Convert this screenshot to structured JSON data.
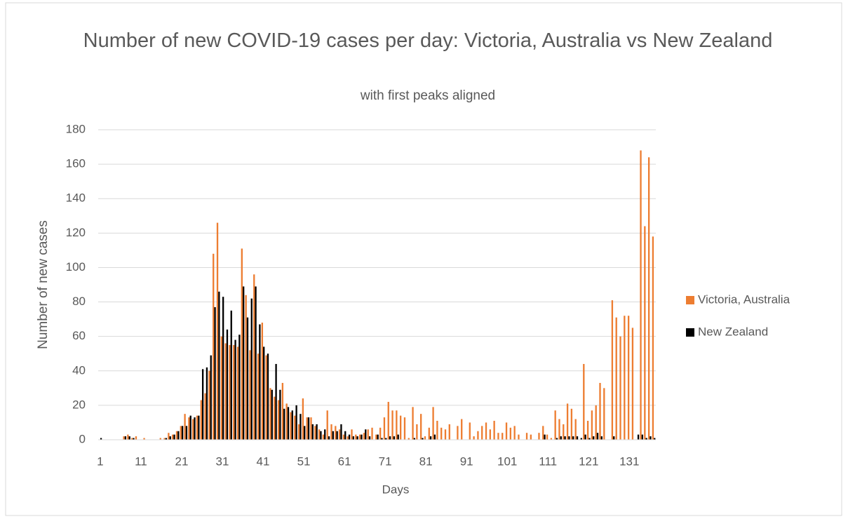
{
  "chart_data": {
    "type": "bar",
    "title": "Number of new COVID-19 cases per day: Victoria, Australia vs New Zealand",
    "subtitle": "with first peaks aligned",
    "x_label": "Days",
    "y_label": "Number of new cases",
    "categories": [
      1,
      null,
      null,
      null,
      null,
      null,
      null,
      null,
      null,
      null,
      11,
      null,
      null,
      null,
      null,
      null,
      null,
      null,
      null,
      null,
      21,
      null,
      null,
      null,
      null,
      null,
      null,
      null,
      null,
      null,
      31,
      null,
      null,
      null,
      null,
      null,
      null,
      null,
      null,
      null,
      41,
      null,
      null,
      null,
      null,
      null,
      null,
      null,
      null,
      null,
      51,
      null,
      null,
      null,
      null,
      null,
      null,
      null,
      null,
      null,
      61,
      null,
      null,
      null,
      null,
      null,
      null,
      null,
      null,
      null,
      71,
      null,
      null,
      null,
      null,
      null,
      null,
      null,
      null,
      null,
      81,
      null,
      null,
      null,
      null,
      null,
      null,
      null,
      null,
      null,
      91,
      null,
      null,
      null,
      null,
      null,
      null,
      null,
      null,
      null,
      101,
      null,
      null,
      null,
      null,
      null,
      null,
      null,
      null,
      null,
      111,
      null,
      null,
      null,
      null,
      null,
      null,
      null,
      null,
      null,
      121,
      null,
      null,
      null,
      null,
      null,
      null,
      null,
      null,
      null,
      131,
      null,
      null,
      null,
      null,
      null,
      null
    ],
    "series": [
      {
        "name": "Victoria, Australia",
        "color": "#ed7d31",
        "values": [
          0,
          0,
          0,
          0,
          0,
          0,
          2,
          3,
          1,
          2,
          0,
          1,
          0,
          0,
          0,
          1,
          1,
          4,
          3,
          5,
          8,
          15,
          13,
          12,
          14,
          23,
          27,
          40,
          108,
          126,
          60,
          56,
          55,
          55,
          54,
          111,
          84,
          52,
          96,
          50,
          68,
          49,
          30,
          25,
          23,
          33,
          21,
          16,
          14,
          9,
          24,
          13,
          13,
          8,
          6,
          3,
          17,
          9,
          8,
          6,
          3,
          2,
          6,
          3,
          3,
          4,
          6,
          7,
          3,
          7,
          13,
          22,
          17,
          17,
          14,
          13,
          1,
          19,
          9,
          15,
          2,
          7,
          19,
          11,
          7,
          6,
          9,
          0,
          8,
          12,
          0,
          10,
          2,
          5,
          8,
          10,
          6,
          11,
          4,
          4,
          10,
          7,
          8,
          3,
          0,
          4,
          3,
          0,
          4,
          8,
          3,
          1,
          17,
          12,
          9,
          21,
          18,
          12,
          0,
          44,
          11,
          17,
          20,
          33,
          30,
          0,
          81,
          71,
          60,
          72,
          72,
          65,
          0,
          168,
          124,
          164,
          118
        ]
      },
      {
        "name": "New Zealand",
        "color": "#000000",
        "values": [
          1,
          0,
          0,
          0,
          0,
          0,
          2,
          2,
          1,
          0,
          0,
          0,
          0,
          0,
          0,
          0,
          1,
          2,
          3,
          5,
          8,
          8,
          14,
          13,
          14,
          41,
          42,
          49,
          77,
          86,
          83,
          64,
          75,
          58,
          61,
          89,
          71,
          82,
          89,
          67,
          54,
          50,
          29,
          44,
          29,
          18,
          19,
          17,
          20,
          15,
          8,
          13,
          9,
          9,
          5,
          6,
          2,
          5,
          5,
          9,
          5,
          3,
          2,
          2,
          3,
          6,
          2,
          0,
          3,
          1,
          1,
          2,
          2,
          3,
          0,
          0,
          0,
          1,
          0,
          1,
          0,
          2,
          3,
          0,
          0,
          0,
          0,
          0,
          0,
          0,
          0,
          0,
          0,
          0,
          0,
          0,
          0,
          0,
          0,
          0,
          0,
          0,
          0,
          0,
          0,
          0,
          0,
          0,
          0,
          3,
          0,
          0,
          1,
          2,
          2,
          2,
          2,
          2,
          1,
          3,
          1,
          2,
          4,
          2,
          0,
          0,
          2,
          0,
          0,
          0,
          0,
          0,
          3,
          3,
          1,
          2,
          1
        ]
      }
    ],
    "ylim": [
      0,
      180
    ],
    "yticks": [
      0,
      20,
      40,
      60,
      80,
      100,
      120,
      140,
      160,
      180
    ],
    "grid": true,
    "legend": "right"
  }
}
